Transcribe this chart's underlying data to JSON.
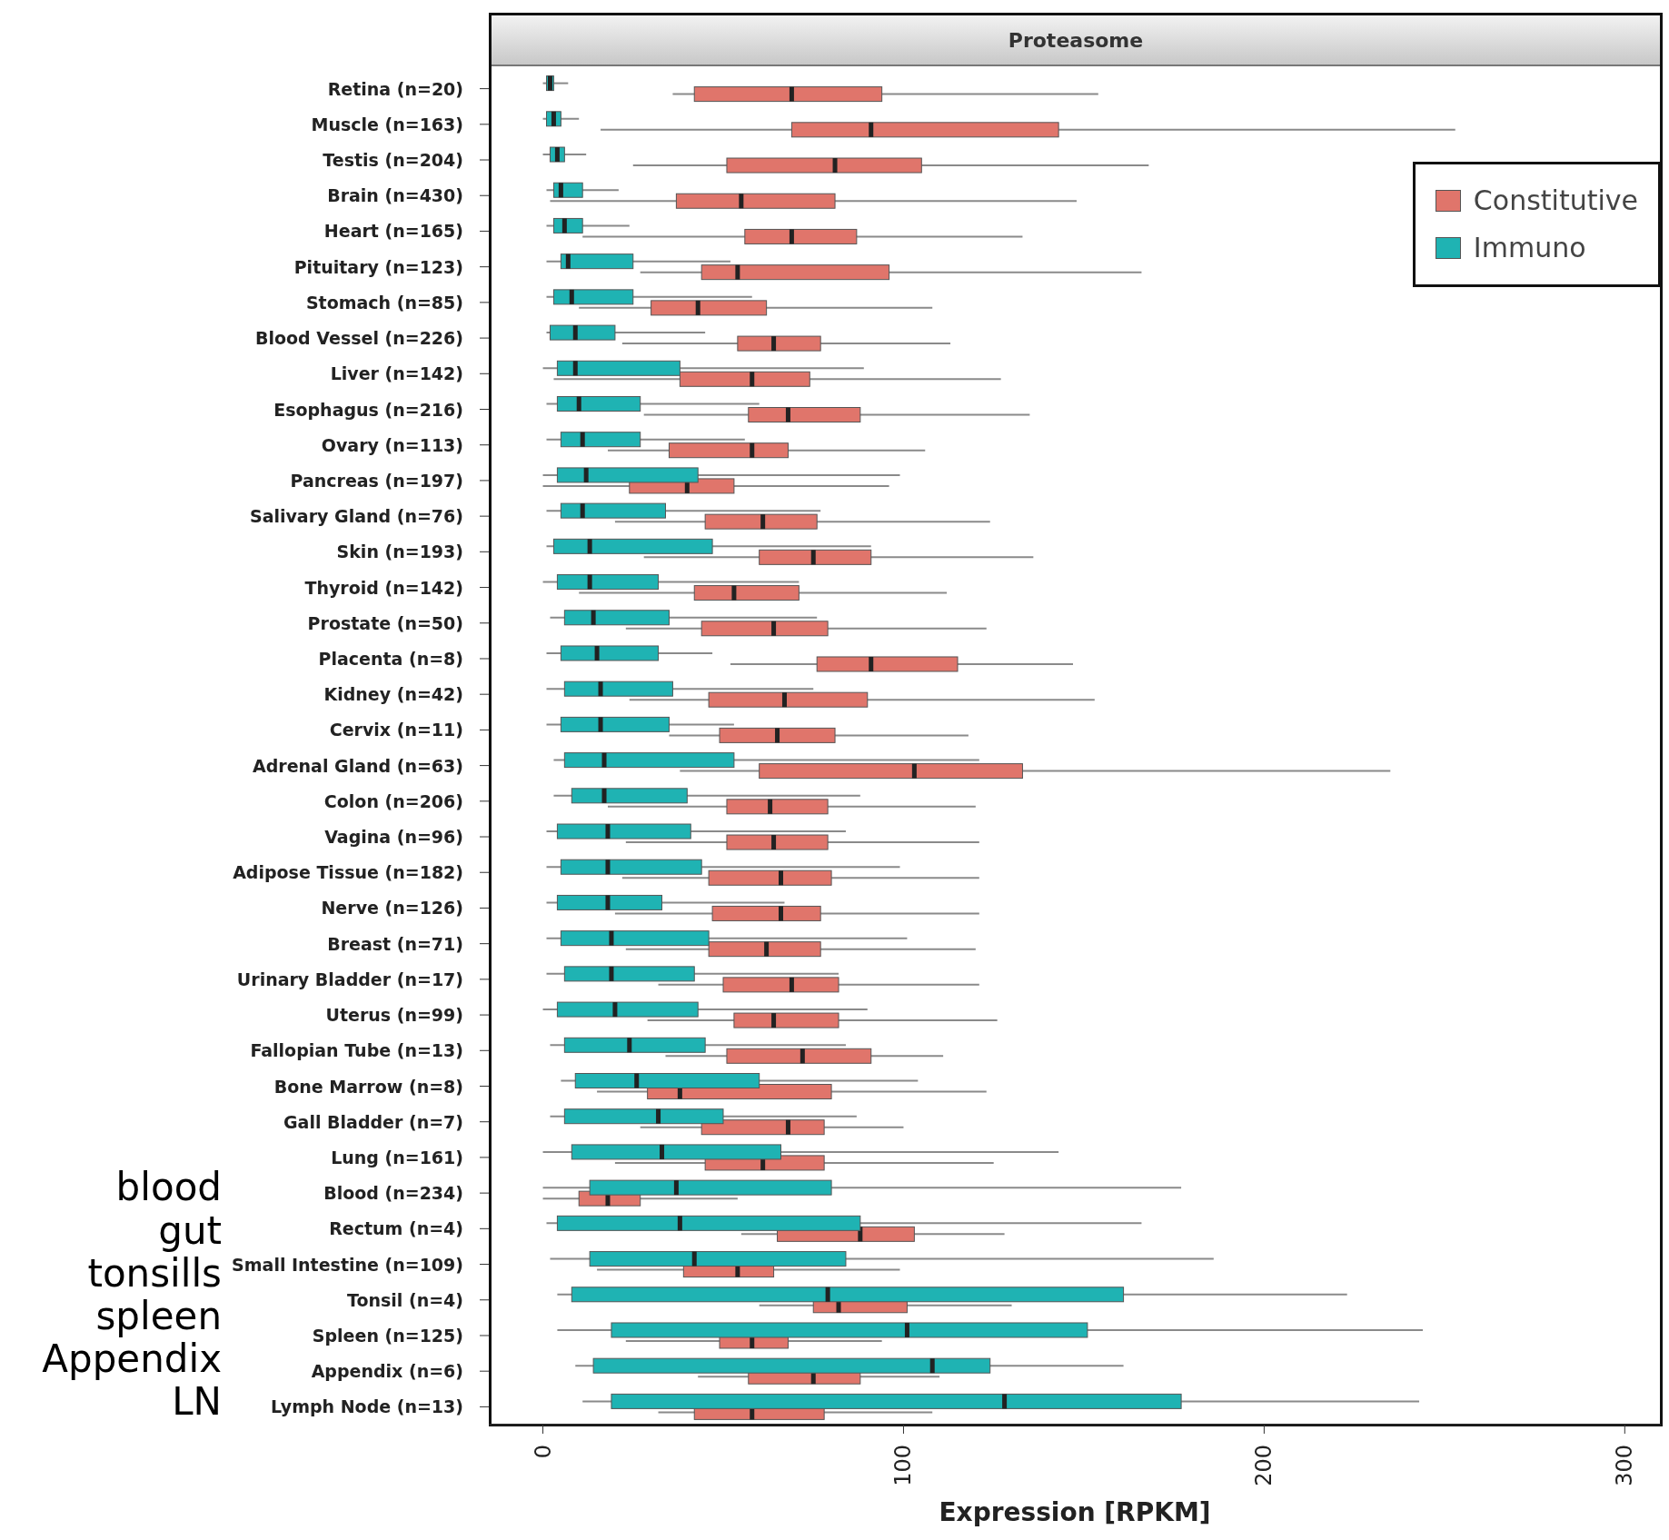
{
  "chart_data": {
    "type": "box",
    "title": "Proteasome",
    "xlabel": "Expression [RPKM]",
    "orientation": "horizontal",
    "categories": [
      "Retina (n=20)",
      "Muscle (n=163)",
      "Testis (n=204)",
      "Brain (n=430)",
      "Heart (n=165)",
      "Pituitary (n=123)",
      "Stomach (n=85)",
      "Blood Vessel (n=226)",
      "Liver (n=142)",
      "Esophagus (n=216)",
      "Ovary (n=113)",
      "Pancreas (n=197)",
      "Salivary Gland (n=76)",
      "Skin (n=193)",
      "Thyroid (n=142)",
      "Prostate (n=50)",
      "Placenta (n=8)",
      "Kidney (n=42)",
      "Cervix (n=11)",
      "Adrenal Gland (n=63)",
      "Colon (n=206)",
      "Vagina (n=96)",
      "Adipose Tissue (n=182)",
      "Nerve (n=126)",
      "Breast (n=71)",
      "Urinary Bladder (n=17)",
      "Uterus (n=99)",
      "Fallopian Tube (n=13)",
      "Bone Marrow (n=8)",
      "Gall Bladder (n=7)",
      "Lung (n=161)",
      "Blood (n=234)",
      "Rectum (n=4)",
      "Small Intestine (n=109)",
      "Tonsil (n=4)",
      "Spleen (n=125)",
      "Appendix (n=6)",
      "Lymph Node (n=13)"
    ],
    "xlim": [
      -15,
      310
    ],
    "xticks": [
      0,
      100,
      200,
      300
    ],
    "legend": "top right",
    "series": [
      {
        "name": "Constitutive",
        "color": "#e0756b",
        "boxes": [
          {
            "low": 36,
            "q1": 42,
            "median": 69,
            "q3": 94,
            "high": 154
          },
          {
            "low": 16,
            "q1": 69,
            "median": 91,
            "q3": 143,
            "high": 253
          },
          {
            "low": 25,
            "q1": 51,
            "median": 81,
            "q3": 105,
            "high": 168
          },
          {
            "low": 2,
            "q1": 37,
            "median": 55,
            "q3": 81,
            "high": 148
          },
          {
            "low": 11,
            "q1": 56,
            "median": 69,
            "q3": 87,
            "high": 133
          },
          {
            "low": 27,
            "q1": 44,
            "median": 54,
            "q3": 96,
            "high": 166
          },
          {
            "low": 10,
            "q1": 30,
            "median": 43,
            "q3": 62,
            "high": 108
          },
          {
            "low": 22,
            "q1": 54,
            "median": 64,
            "q3": 77,
            "high": 113
          },
          {
            "low": 3,
            "q1": 38,
            "median": 58,
            "q3": 74,
            "high": 127
          },
          {
            "low": 28,
            "q1": 57,
            "median": 68,
            "q3": 88,
            "high": 135
          },
          {
            "low": 18,
            "q1": 35,
            "median": 58,
            "q3": 68,
            "high": 106
          },
          {
            "low": 0,
            "q1": 24,
            "median": 40,
            "q3": 53,
            "high": 96
          },
          {
            "low": 20,
            "q1": 45,
            "median": 61,
            "q3": 76,
            "high": 124
          },
          {
            "low": 28,
            "q1": 60,
            "median": 75,
            "q3": 91,
            "high": 136
          },
          {
            "low": 10,
            "q1": 42,
            "median": 53,
            "q3": 71,
            "high": 112
          },
          {
            "low": 23,
            "q1": 44,
            "median": 64,
            "q3": 79,
            "high": 123
          },
          {
            "low": 52,
            "q1": 76,
            "median": 91,
            "q3": 115,
            "high": 147
          },
          {
            "low": 24,
            "q1": 46,
            "median": 67,
            "q3": 90,
            "high": 153
          },
          {
            "low": 35,
            "q1": 49,
            "median": 65,
            "q3": 81,
            "high": 118
          },
          {
            "low": 38,
            "q1": 60,
            "median": 103,
            "q3": 133,
            "high": 235
          },
          {
            "low": 18,
            "q1": 51,
            "median": 63,
            "q3": 79,
            "high": 120
          },
          {
            "low": 23,
            "q1": 51,
            "median": 64,
            "q3": 79,
            "high": 121
          },
          {
            "low": 22,
            "q1": 46,
            "median": 66,
            "q3": 80,
            "high": 121
          },
          {
            "low": 20,
            "q1": 47,
            "median": 66,
            "q3": 77,
            "high": 121
          },
          {
            "low": 23,
            "q1": 46,
            "median": 62,
            "q3": 77,
            "high": 120
          },
          {
            "low": 32,
            "q1": 50,
            "median": 69,
            "q3": 82,
            "high": 121
          },
          {
            "low": 29,
            "q1": 53,
            "median": 64,
            "q3": 82,
            "high": 126
          },
          {
            "low": 34,
            "q1": 51,
            "median": 72,
            "q3": 91,
            "high": 111
          },
          {
            "low": 15,
            "q1": 29,
            "median": 38,
            "q3": 80,
            "high": 123
          },
          {
            "low": 27,
            "q1": 44,
            "median": 68,
            "q3": 78,
            "high": 100
          },
          {
            "low": 20,
            "q1": 45,
            "median": 61,
            "q3": 78,
            "high": 125
          },
          {
            "low": 0,
            "q1": 10,
            "median": 18,
            "q3": 27,
            "high": 54
          },
          {
            "low": 55,
            "q1": 65,
            "median": 88,
            "q3": 103,
            "high": 128
          },
          {
            "low": 15,
            "q1": 39,
            "median": 54,
            "q3": 64,
            "high": 99
          },
          {
            "low": 60,
            "q1": 75,
            "median": 82,
            "q3": 101,
            "high": 130
          },
          {
            "low": 23,
            "q1": 49,
            "median": 58,
            "q3": 68,
            "high": 94
          },
          {
            "low": 43,
            "q1": 57,
            "median": 75,
            "q3": 88,
            "high": 110
          },
          {
            "low": 32,
            "q1": 42,
            "median": 58,
            "q3": 78,
            "high": 108
          }
        ]
      },
      {
        "name": "Immuno",
        "color": "#1fb3b3",
        "boxes": [
          {
            "low": 0,
            "q1": 1,
            "median": 2,
            "q3": 3,
            "high": 7
          },
          {
            "low": 0,
            "q1": 1,
            "median": 3,
            "q3": 5,
            "high": 10
          },
          {
            "low": 0,
            "q1": 2,
            "median": 4,
            "q3": 6,
            "high": 12
          },
          {
            "low": 1,
            "q1": 3,
            "median": 5,
            "q3": 11,
            "high": 21
          },
          {
            "low": 1,
            "q1": 3,
            "median": 6,
            "q3": 11,
            "high": 24
          },
          {
            "low": 1,
            "q1": 5,
            "median": 7,
            "q3": 25,
            "high": 52
          },
          {
            "low": 1,
            "q1": 3,
            "median": 8,
            "q3": 25,
            "high": 58
          },
          {
            "low": 1,
            "q1": 2,
            "median": 9,
            "q3": 20,
            "high": 45
          },
          {
            "low": 0,
            "q1": 4,
            "median": 9,
            "q3": 38,
            "high": 89
          },
          {
            "low": 1,
            "q1": 4,
            "median": 10,
            "q3": 27,
            "high": 60
          },
          {
            "low": 1,
            "q1": 5,
            "median": 11,
            "q3": 27,
            "high": 56
          },
          {
            "low": 0,
            "q1": 4,
            "median": 12,
            "q3": 43,
            "high": 99
          },
          {
            "low": 1,
            "q1": 5,
            "median": 11,
            "q3": 34,
            "high": 77
          },
          {
            "low": 1,
            "q1": 3,
            "median": 13,
            "q3": 47,
            "high": 91
          },
          {
            "low": 0,
            "q1": 4,
            "median": 13,
            "q3": 32,
            "high": 71
          },
          {
            "low": 2,
            "q1": 6,
            "median": 14,
            "q3": 35,
            "high": 76
          },
          {
            "low": 1,
            "q1": 5,
            "median": 15,
            "q3": 32,
            "high": 47
          },
          {
            "low": 1,
            "q1": 6,
            "median": 16,
            "q3": 36,
            "high": 75
          },
          {
            "low": 1,
            "q1": 5,
            "median": 16,
            "q3": 35,
            "high": 53
          },
          {
            "low": 3,
            "q1": 6,
            "median": 17,
            "q3": 53,
            "high": 121
          },
          {
            "low": 3,
            "q1": 8,
            "median": 17,
            "q3": 40,
            "high": 88
          },
          {
            "low": 1,
            "q1": 4,
            "median": 18,
            "q3": 41,
            "high": 84
          },
          {
            "low": 1,
            "q1": 5,
            "median": 18,
            "q3": 44,
            "high": 99
          },
          {
            "low": 1,
            "q1": 4,
            "median": 18,
            "q3": 33,
            "high": 67
          },
          {
            "low": 1,
            "q1": 5,
            "median": 19,
            "q3": 46,
            "high": 101
          },
          {
            "low": 1,
            "q1": 6,
            "median": 19,
            "q3": 42,
            "high": 82
          },
          {
            "low": 0,
            "q1": 4,
            "median": 20,
            "q3": 43,
            "high": 90
          },
          {
            "low": 2,
            "q1": 6,
            "median": 24,
            "q3": 45,
            "high": 84
          },
          {
            "low": 5,
            "q1": 9,
            "median": 26,
            "q3": 60,
            "high": 104
          },
          {
            "low": 2,
            "q1": 6,
            "median": 32,
            "q3": 50,
            "high": 87
          },
          {
            "low": 0,
            "q1": 8,
            "median": 33,
            "q3": 66,
            "high": 143
          },
          {
            "low": 0,
            "q1": 13,
            "median": 37,
            "q3": 80,
            "high": 177
          },
          {
            "low": 1,
            "q1": 4,
            "median": 38,
            "q3": 88,
            "high": 166
          },
          {
            "low": 2,
            "q1": 13,
            "median": 42,
            "q3": 84,
            "high": 186
          },
          {
            "low": 4,
            "q1": 8,
            "median": 79,
            "q3": 161,
            "high": 223
          },
          {
            "low": 4,
            "q1": 19,
            "median": 101,
            "q3": 151,
            "high": 244
          },
          {
            "low": 9,
            "q1": 14,
            "median": 108,
            "q3": 124,
            "high": 161
          },
          {
            "low": 11,
            "q1": 19,
            "median": 128,
            "q3": 177,
            "high": 243
          }
        ]
      }
    ],
    "annotations": [
      "blood",
      "gut",
      "tonsills",
      "spleen",
      "Appendix",
      "LN"
    ]
  }
}
